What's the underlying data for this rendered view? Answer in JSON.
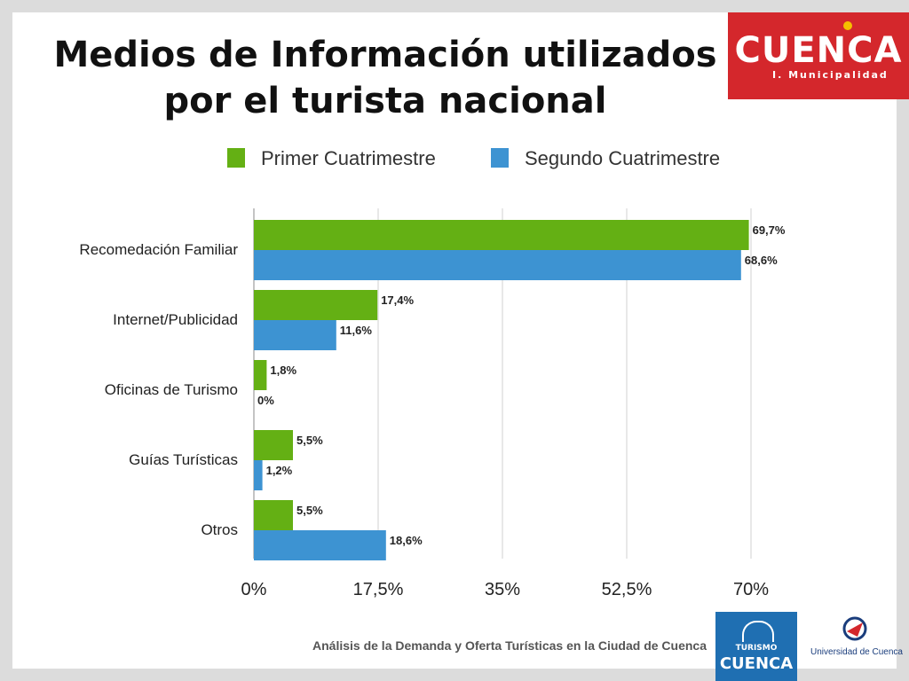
{
  "slide": {
    "title_line1": "Medios de Información utilizados",
    "title_line2": "por el turista nacional",
    "logo": {
      "word": "CUENCA",
      "subtitle": "I. Municipalidad"
    },
    "footer": {
      "text": "Análisis de la Demanda y Oferta Turísticas en la Ciudad de Cuenca",
      "logo1_small": "TURISMO",
      "logo1_word": "CUENCA",
      "logo2_name": "Universidad de Cuenca"
    }
  },
  "colors": {
    "series1": "#64b014",
    "series2": "#3d93d2",
    "grid": "#d0d0d0",
    "logo_red": "#d4272c"
  },
  "chart_data": {
    "type": "bar",
    "orientation": "horizontal",
    "categories": [
      "Recomedación Familiar",
      "Internet/Publicidad",
      "Oficinas de Turismo",
      "Guías Turísticas",
      "Otros"
    ],
    "series": [
      {
        "name": "Primer Cuatrimestre",
        "values": [
          69.7,
          17.4,
          1.8,
          5.5,
          5.5
        ],
        "labels": [
          "69,7%",
          "17,4%",
          "1,8%",
          "5,5%",
          "5,5%"
        ]
      },
      {
        "name": "Segundo Cuatrimestre",
        "values": [
          68.6,
          11.6,
          0,
          1.2,
          18.6
        ],
        "labels": [
          "68,6%",
          "11,6%",
          "0%",
          "1,2%",
          "18,6%"
        ]
      }
    ],
    "xlim": [
      0,
      70
    ],
    "xticks": [
      0,
      17.5,
      35,
      52.5,
      70
    ],
    "xtick_labels": [
      "0%",
      "17,5%",
      "35%",
      "52,5%",
      "70%"
    ],
    "legend_position": "top",
    "grid": true
  }
}
